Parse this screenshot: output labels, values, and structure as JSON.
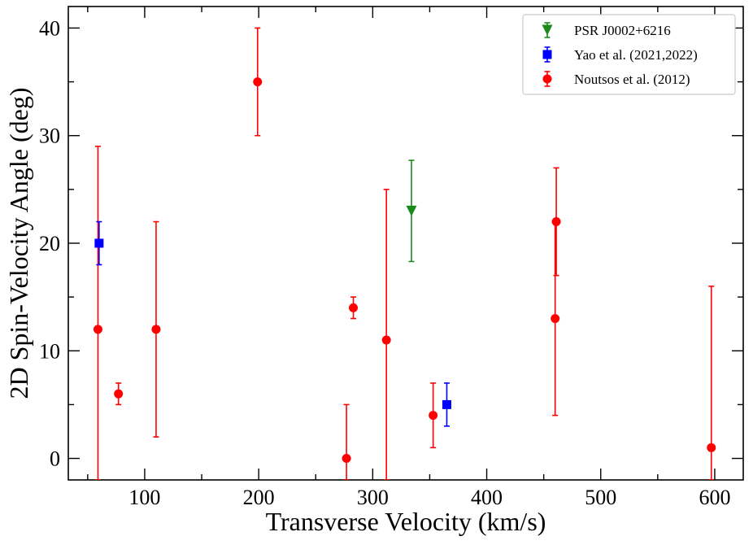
{
  "chart_data": {
    "type": "scatter",
    "xlabel": "Transverse Velocity (km/s)",
    "ylabel": "2D Spin-Velocity Angle (deg)",
    "xlim": [
      33,
      625
    ],
    "ylim": [
      -2,
      42
    ],
    "x_ticks": [
      100,
      200,
      300,
      400,
      500,
      600
    ],
    "y_ticks": [
      0,
      10,
      20,
      30,
      40
    ],
    "legend_position": "top-right",
    "series": [
      {
        "name": "PSR J0002+6216",
        "marker": "triangle-down",
        "color": "#1a8a1a",
        "points": [
          {
            "x": 334,
            "y": 23,
            "yerr_low": 4.7,
            "yerr_high": 4.7
          }
        ]
      },
      {
        "name": "Yao et al. (2021,2022)",
        "marker": "square",
        "color": "#0000ff",
        "points": [
          {
            "x": 60,
            "y": 20,
            "yerr_low": 2,
            "yerr_high": 2
          },
          {
            "x": 365,
            "y": 5,
            "yerr_low": 2,
            "yerr_high": 2
          }
        ]
      },
      {
        "name": "Noutsos et al. (2012)",
        "marker": "circle",
        "color": "#ff0000",
        "points": [
          {
            "x": 59,
            "y": 12,
            "yerr_low": 14,
            "yerr_high": 17
          },
          {
            "x": 77,
            "y": 6,
            "yerr_low": 1,
            "yerr_high": 1
          },
          {
            "x": 110,
            "y": 12,
            "yerr_low": 10,
            "yerr_high": 10
          },
          {
            "x": 199,
            "y": 35,
            "yerr_low": 5,
            "yerr_high": 5
          },
          {
            "x": 277,
            "y": 0,
            "yerr_low": 2,
            "yerr_high": 5
          },
          {
            "x": 283,
            "y": 14,
            "yerr_low": 1,
            "yerr_high": 1
          },
          {
            "x": 312,
            "y": 11,
            "yerr_low": 13,
            "yerr_high": 14
          },
          {
            "x": 353,
            "y": 4,
            "yerr_low": 3,
            "yerr_high": 3
          },
          {
            "x": 460,
            "y": 13,
            "yerr_low": 9,
            "yerr_high": 9
          },
          {
            "x": 461,
            "y": 22,
            "yerr_low": 5,
            "yerr_high": 5
          },
          {
            "x": 597,
            "y": 1,
            "yerr_low": 3,
            "yerr_high": 15
          }
        ]
      }
    ]
  }
}
